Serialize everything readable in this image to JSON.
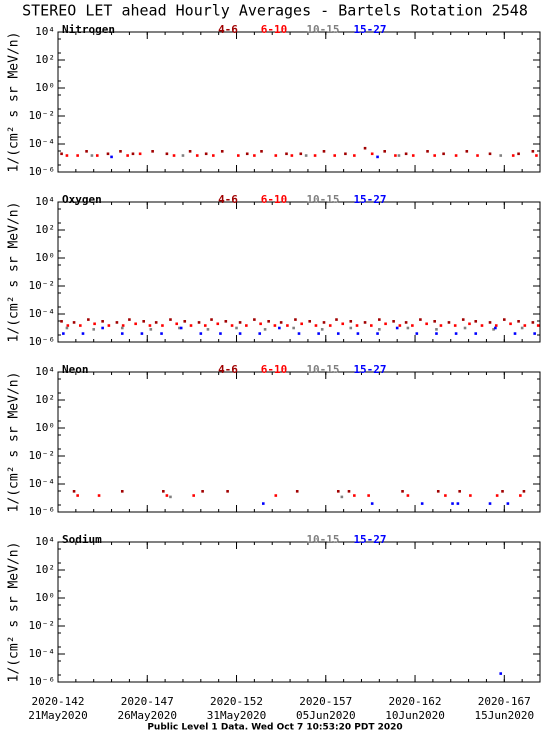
{
  "title": "STEREO LET ahead Hourly Averages - Bartels Rotation 2548",
  "footer": "Public Level 1 Data. Wed Oct  7 10:53:20 PDT 2020",
  "chart_data": [
    {
      "type": "scatter",
      "panel_label": "Nitrogen",
      "ylabel": "1/(cm² s sr MeV/n)",
      "log_y": true,
      "xlim": [
        142,
        169
      ],
      "xticks": [
        142,
        147,
        152,
        157,
        162,
        167
      ],
      "ylim": [
        1e-06,
        10000
      ],
      "yticks": [
        {
          "value": 10000,
          "label": "10⁴"
        },
        {
          "value": 100,
          "label": "10²"
        },
        {
          "value": 1,
          "label": "10⁰"
        },
        {
          "value": 0.01,
          "label": "10⁻²"
        },
        {
          "value": 0.0001,
          "label": "10⁻⁴"
        },
        {
          "value": 1e-06,
          "label": "10⁻⁶"
        }
      ],
      "series": [
        {
          "name": "4-6",
          "color": "#a00000",
          "x": [
            142.2,
            143.6,
            144.8,
            145.5,
            146.2,
            147.3,
            148.1,
            149.4,
            150.3,
            151.2,
            152.6,
            153.4,
            154.8,
            155.6,
            156.9,
            158.1,
            159.2,
            160.3,
            161.5,
            162.7,
            163.6,
            164.9,
            166.2,
            167.8,
            168.6
          ],
          "values": [
            2e-05,
            3e-05,
            2e-05,
            3e-05,
            2e-05,
            3e-05,
            2e-05,
            3e-05,
            2e-05,
            3e-05,
            2e-05,
            3e-05,
            2e-05,
            2e-05,
            3e-05,
            2e-05,
            5e-05,
            3e-05,
            2e-05,
            3e-05,
            2e-05,
            3e-05,
            2e-05,
            2e-05,
            3e-05
          ]
        },
        {
          "name": "6-10",
          "color": "#ff0000",
          "x": [
            142.5,
            143.1,
            144.2,
            145.9,
            146.6,
            148.5,
            149.8,
            150.7,
            152.1,
            153.0,
            154.2,
            155.1,
            156.4,
            157.5,
            158.6,
            159.6,
            160.9,
            161.9,
            163.1,
            164.3,
            165.5,
            167.5,
            168.8
          ],
          "values": [
            1.5e-05,
            1.5e-05,
            1.5e-05,
            1.5e-05,
            2e-05,
            1.5e-05,
            1.5e-05,
            1.5e-05,
            1.5e-05,
            1.5e-05,
            1.5e-05,
            1.5e-05,
            1.5e-05,
            1.5e-05,
            1.5e-05,
            2e-05,
            1.5e-05,
            1.5e-05,
            1.5e-05,
            1.5e-05,
            1.5e-05,
            1.5e-05,
            1.5e-05
          ]
        },
        {
          "name": "10-15",
          "color": "#808080",
          "x": [
            143.9,
            149.0,
            155.9,
            161.1,
            166.8
          ],
          "values": [
            1.5e-05,
            1.5e-05,
            1.5e-05,
            1.5e-05,
            1.5e-05
          ]
        },
        {
          "name": "15-27",
          "color": "#0000ff",
          "x": [
            145.0,
            159.9
          ],
          "values": [
            1.2e-05,
            1.2e-05
          ]
        }
      ]
    },
    {
      "type": "scatter",
      "panel_label": "Oxygen",
      "ylabel": "1/(cm² s sr MeV/n)",
      "log_y": true,
      "xlim": [
        142,
        169
      ],
      "xticks": [
        142,
        147,
        152,
        157,
        162,
        167
      ],
      "ylim": [
        1e-06,
        10000
      ],
      "yticks": [
        {
          "value": 10000,
          "label": "10⁴"
        },
        {
          "value": 100,
          "label": "10²"
        },
        {
          "value": 1,
          "label": "10⁰"
        },
        {
          "value": 0.01,
          "label": "10⁻²"
        },
        {
          "value": 0.0001,
          "label": "10⁻⁴"
        },
        {
          "value": 1e-06,
          "label": "10⁻⁶"
        }
      ],
      "series": [
        {
          "name": "4-6",
          "color": "#a00000",
          "x": [
            142.2,
            142.9,
            143.7,
            144.5,
            145.3,
            146.0,
            146.8,
            147.5,
            148.3,
            149.1,
            149.9,
            150.6,
            151.4,
            152.2,
            153.0,
            153.8,
            154.5,
            155.3,
            156.1,
            156.9,
            157.6,
            158.4,
            159.2,
            160.0,
            160.8,
            161.5,
            162.3,
            163.1,
            163.9,
            164.7,
            165.4,
            166.2,
            167.0,
            167.8,
            168.6
          ],
          "values": [
            3e-05,
            2.5e-05,
            4e-05,
            3e-05,
            2.5e-05,
            4e-05,
            3e-05,
            2.5e-05,
            4e-05,
            3e-05,
            2.5e-05,
            4e-05,
            3e-05,
            2.5e-05,
            4e-05,
            3e-05,
            2.5e-05,
            4e-05,
            3e-05,
            2.5e-05,
            4e-05,
            3e-05,
            2.5e-05,
            4e-05,
            3e-05,
            2.5e-05,
            4e-05,
            3e-05,
            2.5e-05,
            4e-05,
            3e-05,
            2.5e-05,
            4e-05,
            3e-05,
            2.5e-05
          ]
        },
        {
          "name": "6-10",
          "color": "#ff0000",
          "x": [
            142.55,
            143.25,
            144.05,
            144.85,
            145.65,
            146.35,
            147.15,
            147.85,
            148.65,
            149.45,
            150.25,
            150.95,
            151.75,
            152.55,
            153.35,
            154.15,
            154.85,
            155.65,
            156.45,
            157.25,
            157.95,
            158.75,
            159.55,
            160.35,
            161.15,
            161.85,
            162.65,
            163.45,
            164.25,
            165.05,
            165.75,
            166.55,
            167.35,
            168.15,
            168.9
          ],
          "values": [
            1.5e-05,
            1.5e-05,
            2e-05,
            1.5e-05,
            1.5e-05,
            2e-05,
            1.5e-05,
            1.5e-05,
            2e-05,
            1.5e-05,
            1.5e-05,
            2e-05,
            1.5e-05,
            1.5e-05,
            2e-05,
            1.5e-05,
            1.5e-05,
            2e-05,
            1.5e-05,
            1.5e-05,
            2e-05,
            1.5e-05,
            1.5e-05,
            2e-05,
            1.5e-05,
            1.5e-05,
            2e-05,
            1.5e-05,
            1.5e-05,
            2e-05,
            1.5e-05,
            1.5e-05,
            2e-05,
            1.5e-05,
            1.5e-05
          ]
        },
        {
          "name": "10-15",
          "color": "#808080",
          "x": [
            142.5,
            144.0,
            145.6,
            147.2,
            148.8,
            150.4,
            152.0,
            153.6,
            155.2,
            156.8,
            158.4,
            160.0,
            161.6,
            163.2,
            164.8,
            166.4,
            168.0
          ],
          "values": [
            1e-05,
            8e-06,
            1e-05,
            8e-06,
            1e-05,
            8e-06,
            1e-05,
            8e-06,
            1e-05,
            8e-06,
            1e-05,
            8e-06,
            1e-05,
            8e-06,
            1e-05,
            8e-06,
            1e-05
          ]
        },
        {
          "name": "15-27",
          "color": "#0000ff",
          "x": [
            142.3,
            143.4,
            144.5,
            145.6,
            146.7,
            147.8,
            148.9,
            150.0,
            151.1,
            152.2,
            153.3,
            154.4,
            155.5,
            156.6,
            157.7,
            158.8,
            159.9,
            161.0,
            162.1,
            163.2,
            164.3,
            165.4,
            166.5,
            167.6,
            168.7
          ],
          "values": [
            4e-06,
            4e-06,
            1e-05,
            4e-06,
            4e-06,
            4e-06,
            1e-05,
            4e-06,
            4e-06,
            4e-06,
            4e-06,
            1e-05,
            4e-06,
            4e-06,
            4e-06,
            4e-06,
            4e-06,
            1e-05,
            4e-06,
            4e-06,
            4e-06,
            4e-06,
            1e-05,
            4e-06,
            4e-06
          ]
        }
      ]
    },
    {
      "type": "scatter",
      "panel_label": "Neon",
      "ylabel": "1/(cm² s sr MeV/n)",
      "log_y": true,
      "xlim": [
        142,
        169
      ],
      "xticks": [
        142,
        147,
        152,
        157,
        162,
        167
      ],
      "ylim": [
        1e-06,
        10000
      ],
      "yticks": [
        {
          "value": 10000,
          "label": "10⁴"
        },
        {
          "value": 100,
          "label": "10²"
        },
        {
          "value": 1,
          "label": "10⁰"
        },
        {
          "value": 0.01,
          "label": "10⁻²"
        },
        {
          "value": 0.0001,
          "label": "10⁻⁴"
        },
        {
          "value": 1e-06,
          "label": "10⁻⁶"
        }
      ],
      "series": [
        {
          "name": "4-6",
          "color": "#a00000",
          "x": [
            142.9,
            145.6,
            147.9,
            150.1,
            151.5,
            155.4,
            157.7,
            158.3,
            161.3,
            163.3,
            164.5,
            166.9,
            168.1
          ],
          "values": [
            3e-05,
            3e-05,
            3e-05,
            3e-05,
            3e-05,
            3e-05,
            3e-05,
            3e-05,
            3e-05,
            3e-05,
            3e-05,
            3e-05,
            3e-05
          ]
        },
        {
          "name": "6-10",
          "color": "#ff0000",
          "x": [
            143.1,
            144.3,
            148.1,
            149.6,
            154.2,
            158.6,
            159.4,
            161.6,
            163.7,
            165.1,
            166.6,
            167.9
          ],
          "values": [
            1.5e-05,
            1.5e-05,
            1.5e-05,
            1.5e-05,
            1.5e-05,
            1.5e-05,
            1.5e-05,
            1.5e-05,
            1.5e-05,
            1.5e-05,
            1.5e-05,
            1.5e-05
          ]
        },
        {
          "name": "10-15",
          "color": "#808080",
          "x": [
            148.3,
            157.9
          ],
          "values": [
            1.2e-05,
            1.2e-05
          ]
        },
        {
          "name": "15-27",
          "color": "#0000ff",
          "x": [
            153.5,
            159.6,
            162.4,
            164.1,
            164.4,
            166.2,
            167.2
          ],
          "values": [
            4e-06,
            4e-06,
            4e-06,
            4e-06,
            4e-06,
            4e-06,
            4e-06
          ]
        }
      ]
    },
    {
      "type": "scatter",
      "panel_label": "Sodium",
      "ylabel": "1/(cm² s sr MeV/n)",
      "log_y": true,
      "xlim": [
        142,
        169
      ],
      "xticks": [
        {
          "value": 142,
          "label": "2020-142"
        },
        {
          "value": 147,
          "label": "2020-147"
        },
        {
          "value": 152,
          "label": "2020-152"
        },
        {
          "value": 157,
          "label": "2020-157"
        },
        {
          "value": 162,
          "label": "2020-162"
        },
        {
          "value": 167,
          "label": "2020-167"
        }
      ],
      "xtick_dates": [
        "21May2020",
        "26May2020",
        "31May2020",
        "05Jun2020",
        "10Jun2020",
        "15Jun2020"
      ],
      "ylim": [
        1e-06,
        10000
      ],
      "yticks": [
        {
          "value": 10000,
          "label": "10⁴"
        },
        {
          "value": 100,
          "label": "10²"
        },
        {
          "value": 1,
          "label": "10⁰"
        },
        {
          "value": 0.01,
          "label": "10⁻²"
        },
        {
          "value": 0.0001,
          "label": "10⁻⁴"
        },
        {
          "value": 1e-06,
          "label": "10⁻⁶"
        }
      ],
      "series": [
        {
          "name": "10-15",
          "color": "#808080",
          "x": [],
          "values": []
        },
        {
          "name": "15-27",
          "color": "#0000ff",
          "x": [
            166.8
          ],
          "values": [
            4e-06
          ]
        }
      ]
    }
  ]
}
